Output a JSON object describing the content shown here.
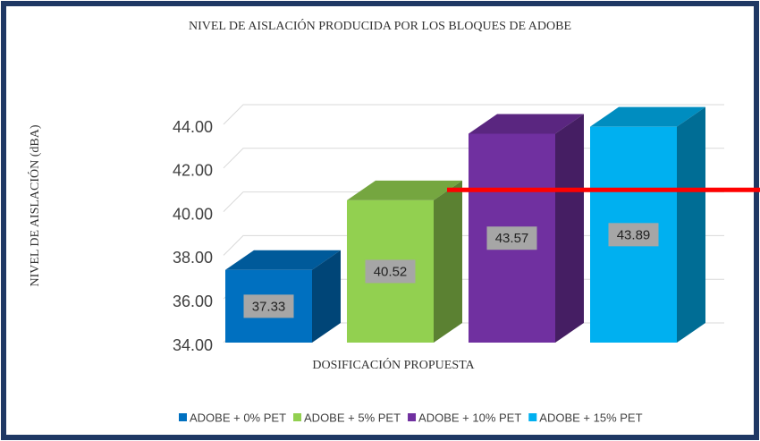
{
  "chart_data": {
    "type": "bar3d",
    "title": "NIVEL DE AISLACIÓN PRODUCIDA POR LOS BLOQUES DE ADOBE",
    "y_label": "NIVEL DE AISLACIÓN (dBA)",
    "x_label": "DOSIFICACIÓN PROPUESTA",
    "series": [
      {
        "name": "ADOBE + 0% PET",
        "color": "#0070c0",
        "values": [
          37.33
        ]
      },
      {
        "name": "ADOBE + 5% PET",
        "color": "#92d050",
        "values": [
          40.52
        ]
      },
      {
        "name": "ADOBE + 10% PET",
        "color": "#7030a0",
        "values": [
          43.57
        ]
      },
      {
        "name": "ADOBE + 15% PET",
        "color": "#00b0f0",
        "values": [
          43.89
        ]
      }
    ],
    "ylim": [
      34,
      44.5
    ],
    "yticks": [
      {
        "value": 34,
        "label": "34.00"
      },
      {
        "value": 36,
        "label": "36.00"
      },
      {
        "value": 38,
        "label": "38.00"
      },
      {
        "value": 40,
        "label": "40.00"
      },
      {
        "value": 42,
        "label": "42.00"
      },
      {
        "value": 44,
        "label": "44.00"
      }
    ],
    "grid": true,
    "reference_line": {
      "value": 41,
      "color": "#ff0000"
    },
    "legend": "bottom"
  }
}
